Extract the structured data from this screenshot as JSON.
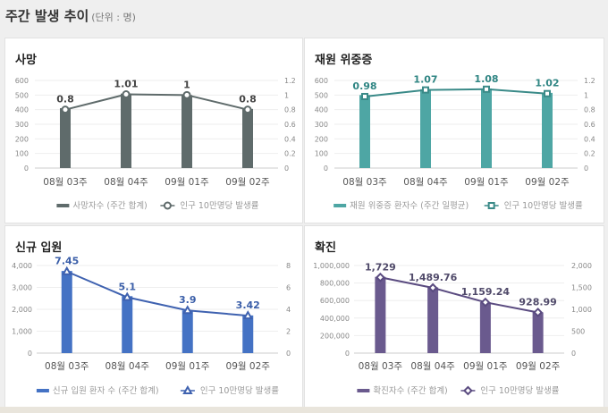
{
  "header": {
    "title": "주간 발생 추이",
    "unit": "(단위 : 명)"
  },
  "chart_data": [
    {
      "type": "bar+line",
      "title": "사망",
      "categories": [
        "08월 03주",
        "08월 04주",
        "09월 01주",
        "09월 02주"
      ],
      "series": [
        {
          "name": "사망자수 (주간 합계)",
          "kind": "bar",
          "axis": "left",
          "values": [
            410,
            510,
            500,
            405
          ]
        },
        {
          "name": "인구 10만명당 발생률",
          "kind": "line",
          "axis": "right",
          "marker": "circle",
          "values": [
            0.8,
            1.01,
            1,
            0.8
          ],
          "labels": [
            "0.8",
            "1.01",
            "1",
            "0.8"
          ]
        }
      ],
      "left_ticks": [
        "0",
        "100",
        "200",
        "300",
        "400",
        "500",
        "600"
      ],
      "ylim": [
        0,
        600
      ],
      "right_ticks": [
        "0",
        "0.2",
        "0.4",
        "0.6",
        "0.8",
        "1",
        "1.2"
      ],
      "y2lim": [
        0,
        1.2
      ],
      "bar_color": "#5f6b6b",
      "line_color": "#5f6b6b",
      "label_color": "#444444"
    },
    {
      "type": "bar+line",
      "title": "재원 위중증",
      "categories": [
        "08월 03주",
        "08월 04주",
        "09월 01주",
        "09월 02주"
      ],
      "series": [
        {
          "name": "재원 위중증 환자수 (주간 일평균)",
          "kind": "bar",
          "axis": "left",
          "values": [
            500,
            540,
            545,
            515
          ]
        },
        {
          "name": "인구 10만명당 발생률",
          "kind": "line",
          "axis": "right",
          "marker": "square",
          "values": [
            0.98,
            1.07,
            1.08,
            1.02
          ],
          "labels": [
            "0.98",
            "1.07",
            "1.08",
            "1.02"
          ]
        }
      ],
      "left_ticks": [
        "0",
        "100",
        "200",
        "300",
        "400",
        "500",
        "600"
      ],
      "ylim": [
        0,
        600
      ],
      "right_ticks": [
        "0",
        "0.2",
        "0.4",
        "0.6",
        "0.8",
        "1",
        "1.2"
      ],
      "y2lim": [
        0,
        1.2
      ],
      "bar_color": "#4ea6a4",
      "line_color": "#3a8a88",
      "label_color": "#2f8583"
    },
    {
      "type": "bar+line",
      "title": "신규 입원",
      "categories": [
        "08월 03주",
        "08월 04주",
        "09월 01주",
        "09월 02주"
      ],
      "series": [
        {
          "name": "신규 입원 환자 수 (주간 합계)",
          "kind": "bar",
          "axis": "left",
          "values": [
            3750,
            2600,
            1950,
            1720
          ]
        },
        {
          "name": "인구 10만명당 발생률",
          "kind": "line",
          "axis": "right",
          "marker": "triangle",
          "values": [
            7.45,
            5.1,
            3.9,
            3.42
          ],
          "labels": [
            "7.45",
            "5.1",
            "3.9",
            "3.42"
          ]
        }
      ],
      "left_ticks": [
        "0",
        "1,000",
        "2,000",
        "3,000",
        "4,000"
      ],
      "ylim": [
        0,
        4000
      ],
      "right_ticks": [
        "0",
        "2",
        "4",
        "6",
        "8"
      ],
      "y2lim": [
        0,
        8
      ],
      "bar_color": "#4472c4",
      "line_color": "#3f62b0",
      "label_color": "#3a5ea8"
    },
    {
      "type": "bar+line",
      "title": "확진",
      "categories": [
        "08월 03주",
        "08월 04주",
        "09월 01주",
        "09월 02주"
      ],
      "series": [
        {
          "name": "확진자수 (주간 합계)",
          "kind": "bar",
          "axis": "left",
          "values": [
            870000,
            750000,
            580000,
            465000
          ]
        },
        {
          "name": "인구 10만명당 발생률",
          "kind": "line",
          "axis": "right",
          "marker": "diamond",
          "values": [
            1729,
            1489.76,
            1159.24,
            928.99
          ],
          "labels": [
            "1,729",
            "1,489.76",
            "1,159.24",
            "928.99"
          ]
        }
      ],
      "left_ticks": [
        "0",
        "200,000",
        "400,000",
        "600,000",
        "800,000",
        "1,000,000"
      ],
      "ylim": [
        0,
        1000000
      ],
      "right_ticks": [
        "0",
        "500",
        "1,000",
        "1,500",
        "2,000"
      ],
      "y2lim": [
        0,
        2000
      ],
      "bar_color": "#6a5a8e",
      "line_color": "#5a4b80",
      "label_color": "#504a6a"
    }
  ]
}
